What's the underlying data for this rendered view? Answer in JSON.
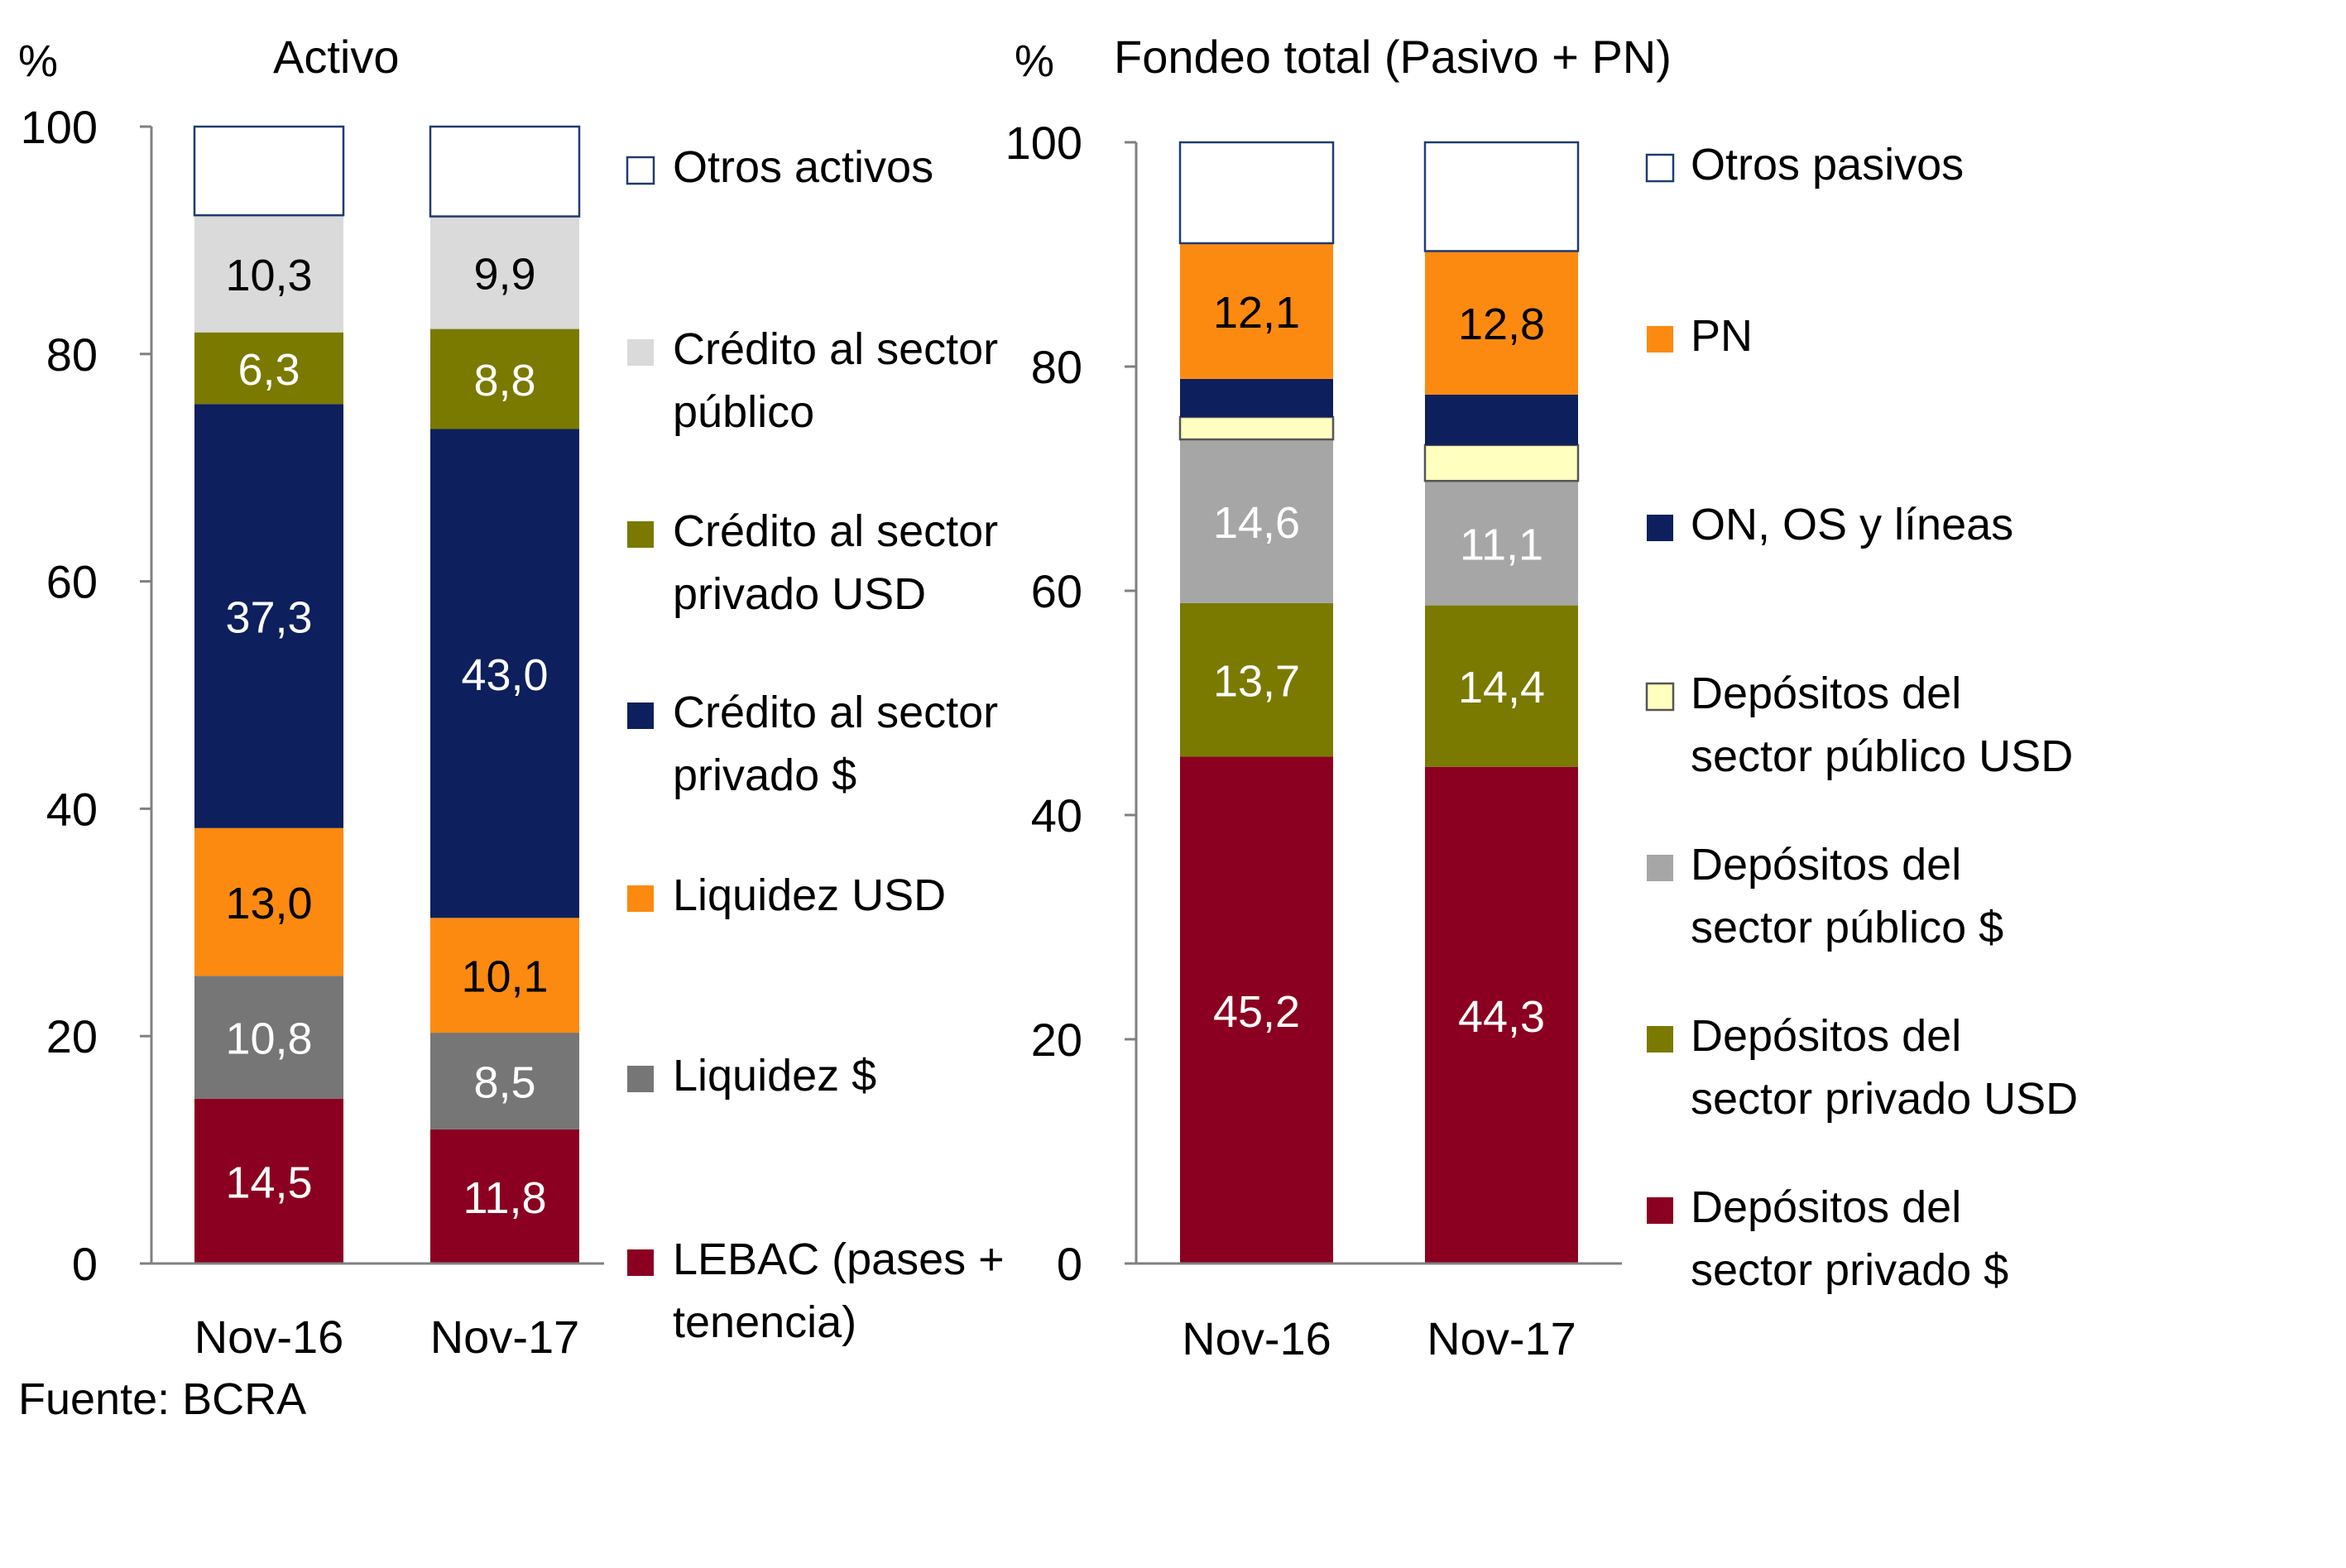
{
  "footer": {
    "source": "Fuente: BCRA"
  },
  "chart_data": [
    {
      "type": "bar",
      "stacked": true,
      "title": "Activo",
      "ylabel": "%",
      "ylim": [
        0,
        100
      ],
      "yticks": [
        0,
        20,
        40,
        60,
        80,
        100
      ],
      "grid": false,
      "legend_position": "right",
      "categories": [
        "Nov-16",
        "Nov-17"
      ],
      "series": [
        {
          "name": "LEBAC (pases + tenencia)",
          "legend_lines": [
            "LEBAC (pases +",
            "tenencia)"
          ],
          "color": "#8b0020",
          "label_color": "#ffffff",
          "values": [
            14.5,
            11.8
          ],
          "labels": [
            "14,5",
            "11,8"
          ]
        },
        {
          "name": "Liquidez $",
          "legend_lines": [
            "Liquidez $"
          ],
          "color": "#767676",
          "label_color": "#ffffff",
          "values": [
            10.8,
            8.5
          ],
          "labels": [
            "10,8",
            "8,5"
          ]
        },
        {
          "name": "Liquidez USD",
          "legend_lines": [
            "Liquidez USD"
          ],
          "color": "#fc8a10",
          "label_color": "#000000",
          "values": [
            13.0,
            10.1
          ],
          "labels": [
            "13,0",
            "10,1"
          ]
        },
        {
          "name": "Crédito al sector privado $",
          "legend_lines": [
            "Crédito al sector",
            "privado $"
          ],
          "color": "#0d1f5c",
          "label_color": "#ffffff",
          "values": [
            37.3,
            43.0
          ],
          "labels": [
            "37,3",
            "43,0"
          ]
        },
        {
          "name": "Crédito al sector privado USD",
          "legend_lines": [
            "Crédito al sector",
            "privado USD"
          ],
          "color": "#7a7a00",
          "label_color": "#ffffff",
          "values": [
            6.3,
            8.8
          ],
          "labels": [
            "6,3",
            "8,8"
          ]
        },
        {
          "name": "Crédito al sector público",
          "legend_lines": [
            "Crédito al sector",
            "público"
          ],
          "color": "#dadada",
          "label_color": "#000000",
          "values": [
            10.3,
            9.9
          ],
          "labels": [
            "10,3",
            "9,9"
          ]
        },
        {
          "name": "Otros activos",
          "legend_lines": [
            "Otros activos"
          ],
          "color": "#ffffff",
          "border": "#1f3b73",
          "label_color": "#000000",
          "values": [
            7.8,
            7.9
          ],
          "labels": [
            "",
            ""
          ]
        }
      ]
    },
    {
      "type": "bar",
      "stacked": true,
      "title": "Fondeo total (Pasivo + PN)",
      "ylabel": "%",
      "ylim": [
        0,
        100
      ],
      "yticks": [
        0,
        20,
        40,
        60,
        80,
        100
      ],
      "grid": false,
      "legend_position": "right",
      "categories": [
        "Nov-16",
        "Nov-17"
      ],
      "series": [
        {
          "name": "Depósitos del sector privado $",
          "legend_lines": [
            "Depósitos del",
            "sector privado $"
          ],
          "color": "#8b0020",
          "label_color": "#ffffff",
          "values": [
            45.2,
            44.3
          ],
          "labels": [
            "45,2",
            "44,3"
          ]
        },
        {
          "name": "Depósitos del sector privado USD",
          "legend_lines": [
            "Depósitos del",
            "sector privado USD"
          ],
          "color": "#7a7a00",
          "label_color": "#ffffff",
          "values": [
            13.7,
            14.4
          ],
          "labels": [
            "13,7",
            "14,4"
          ]
        },
        {
          "name": "Depósitos del sector público $",
          "legend_lines": [
            "Depósitos del",
            "sector público $"
          ],
          "color": "#a6a6a6",
          "label_color": "#ffffff",
          "values": [
            14.6,
            11.1
          ],
          "labels": [
            "14,6",
            "11,1"
          ]
        },
        {
          "name": "Depósitos del sector público USD",
          "legend_lines": [
            "Depósitos del",
            "sector público USD"
          ],
          "color": "#ffffc0",
          "border": "#555555",
          "label_color": "#000000",
          "values": [
            2.0,
            3.2
          ],
          "labels": [
            "",
            ""
          ]
        },
        {
          "name": "ON, OS y líneas",
          "legend_lines": [
            "ON, OS y líneas"
          ],
          "color": "#0d1f5c",
          "label_color": "#ffffff",
          "values": [
            3.4,
            4.5
          ],
          "labels": [
            "",
            ""
          ]
        },
        {
          "name": "PN",
          "legend_lines": [
            "PN"
          ],
          "color": "#fc8a10",
          "label_color": "#000000",
          "values": [
            12.1,
            12.8
          ],
          "labels": [
            "12,1",
            "12,8"
          ]
        },
        {
          "name": "Otros pasivos",
          "legend_lines": [
            "Otros pasivos"
          ],
          "color": "#ffffff",
          "border": "#1f3b73",
          "label_color": "#000000",
          "values": [
            9.0,
            9.7
          ],
          "labels": [
            "",
            ""
          ]
        }
      ]
    }
  ]
}
